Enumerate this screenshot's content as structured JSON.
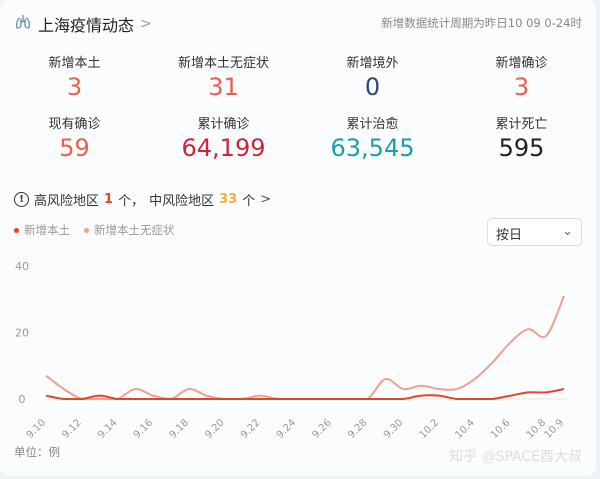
{
  "header": {
    "title": "上海疫情动态",
    "period": "新增数据统计周期为昨日10 09 0-24时"
  },
  "stats": [
    {
      "label": "新增本土",
      "value": "3",
      "color": "#e8604f"
    },
    {
      "label": "新增本土无症状",
      "value": "31",
      "color": "#e8604f"
    },
    {
      "label": "新增境外",
      "value": "0",
      "color": "#2b4a7a"
    },
    {
      "label": "新增确诊",
      "value": "3",
      "color": "#e8604f"
    },
    {
      "label": "现有确诊",
      "value": "59",
      "color": "#e8604f"
    },
    {
      "label": "累计确诊",
      "value": "64,199",
      "color": "#c8283a"
    },
    {
      "label": "累计治愈",
      "value": "63,545",
      "color": "#1a9fb0"
    },
    {
      "label": "累计死亡",
      "value": "595",
      "color": "#222222"
    }
  ],
  "risk": {
    "high_label": "高风险地区",
    "high_count": "1",
    "unit1": "个，",
    "mid_label": "中风险地区",
    "mid_count": "33",
    "unit2": "个"
  },
  "select": {
    "value": "按日"
  },
  "unit_label": "单位：例",
  "watermark": "知乎 @SPACE酉大叔",
  "chart_data": {
    "type": "line",
    "x": [
      "9.10",
      "9.11",
      "9.12",
      "9.13",
      "9.14",
      "9.15",
      "9.16",
      "9.17",
      "9.18",
      "9.19",
      "9.20",
      "9.21",
      "9.22",
      "9.23",
      "9.24",
      "9.25",
      "9.26",
      "9.27",
      "9.28",
      "9.29",
      "9.30",
      "10.1",
      "10.2",
      "10.3",
      "10.4",
      "10.5",
      "10.6",
      "10.7",
      "10.8",
      "10.9"
    ],
    "x_ticks": [
      "9.10",
      "9.12",
      "9.14",
      "9.16",
      "9.18",
      "9.20",
      "9.22",
      "9.24",
      "9.26",
      "9.28",
      "9.30",
      "10.2",
      "10.4",
      "10.6",
      "10.8",
      "10.9"
    ],
    "y_ticks": [
      "0",
      "20",
      "40"
    ],
    "ylim": [
      0,
      40
    ],
    "grid": false,
    "legend": "top-left",
    "series": [
      {
        "name": "新增本土",
        "color": "#e0452e",
        "values": [
          1,
          0,
          0,
          1,
          0,
          0,
          0,
          0,
          0,
          0,
          0,
          0,
          0,
          0,
          0,
          0,
          0,
          0,
          0,
          0,
          0,
          1,
          1,
          0,
          0,
          0,
          1,
          2,
          2,
          3
        ]
      },
      {
        "name": "新增本土无症状",
        "color": "#f0a08c",
        "values": [
          7,
          3,
          0,
          0,
          0,
          3,
          1,
          0,
          3,
          1,
          0,
          0,
          1,
          0,
          0,
          0,
          0,
          0,
          0,
          6,
          3,
          4,
          3,
          3,
          6,
          11,
          17,
          21,
          19,
          31
        ]
      }
    ]
  }
}
